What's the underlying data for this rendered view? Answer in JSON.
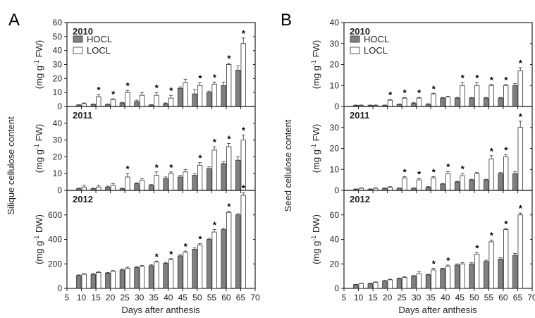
{
  "figure": {
    "panels": [
      {
        "letter": "A",
        "ylabel": "Silique cellulose content"
      },
      {
        "letter": "B",
        "ylabel": "Seed cellulose content"
      }
    ],
    "xlabel": "Days after anthesis",
    "legend": [
      "HOCL",
      "LOCL"
    ]
  },
  "colors": {
    "hocl": "#808080",
    "locl": "#ffffff",
    "stroke": "#333333"
  },
  "chart_data": [
    {
      "type": "bar",
      "panel": "A",
      "year": "2010",
      "unit": "(mg g-1 FW)",
      "x": [
        10,
        15,
        20,
        25,
        30,
        35,
        40,
        45,
        50,
        55,
        60,
        65
      ],
      "xlim": [
        5,
        70
      ],
      "xticks": [
        5,
        10,
        15,
        20,
        25,
        30,
        35,
        40,
        45,
        50,
        55,
        60,
        65,
        70
      ],
      "ylim": [
        0,
        60
      ],
      "yticks": [
        0,
        10,
        20,
        30,
        40,
        50,
        60
      ],
      "show_legend": true,
      "series": [
        {
          "name": "HOCL",
          "values": [
            1,
            1.5,
            1.5,
            2.5,
            3.5,
            1,
            2,
            13,
            9,
            10,
            15,
            26
          ],
          "errors": [
            0.3,
            0.3,
            0.3,
            0.5,
            1,
            0.3,
            0.5,
            1,
            3,
            1,
            2.5,
            3
          ]
        },
        {
          "name": "LOCL",
          "values": [
            2,
            7,
            5,
            10,
            8,
            8,
            6,
            17,
            15,
            16,
            30,
            45
          ],
          "errors": [
            0.5,
            1.5,
            0.5,
            1.5,
            2,
            2,
            2,
            2.5,
            2,
            1.5,
            1,
            4
          ]
        }
      ],
      "sig": [
        false,
        true,
        true,
        true,
        false,
        true,
        true,
        false,
        true,
        true,
        true,
        true
      ]
    },
    {
      "type": "bar",
      "panel": "A",
      "year": "2011",
      "unit": "(mg g-1 FW)",
      "x": [
        10,
        15,
        20,
        25,
        30,
        35,
        40,
        45,
        50,
        55,
        60,
        65
      ],
      "xlim": [
        5,
        70
      ],
      "xticks": [
        5,
        10,
        15,
        20,
        25,
        30,
        35,
        40,
        45,
        50,
        55,
        60,
        65,
        70
      ],
      "ylim": [
        0,
        50
      ],
      "yticks": [
        0,
        10,
        20,
        30,
        40,
        50
      ],
      "show_legend": false,
      "series": [
        {
          "name": "HOCL",
          "values": [
            1,
            1,
            2,
            1,
            4,
            3,
            7,
            8,
            9,
            13,
            16,
            18
          ],
          "errors": [
            0.3,
            0.3,
            0.5,
            0.3,
            0.5,
            0.5,
            1,
            1,
            1,
            1,
            1,
            2
          ]
        },
        {
          "name": "LOCL",
          "values": [
            2,
            2,
            3,
            8,
            6,
            9,
            10,
            11,
            15,
            24,
            26,
            30
          ],
          "errors": [
            1,
            1,
            1,
            2,
            1,
            2,
            1,
            1.5,
            1.5,
            2,
            2,
            3
          ]
        }
      ],
      "sig": [
        false,
        false,
        false,
        true,
        false,
        true,
        true,
        false,
        true,
        true,
        true,
        true
      ]
    },
    {
      "type": "bar",
      "panel": "A",
      "year": "2012",
      "unit": "(mg g-1 DW)",
      "x": [
        10,
        15,
        20,
        25,
        30,
        35,
        40,
        45,
        50,
        55,
        60,
        65
      ],
      "xlim": [
        5,
        70
      ],
      "xticks": [
        5,
        10,
        15,
        20,
        25,
        30,
        35,
        40,
        45,
        50,
        55,
        60,
        65,
        70
      ],
      "ylim": [
        0,
        800
      ],
      "yticks": [
        0,
        200,
        400,
        600,
        800
      ],
      "show_legend": false,
      "series": [
        {
          "name": "HOCL",
          "values": [
            105,
            115,
            125,
            150,
            170,
            185,
            205,
            265,
            320,
            400,
            480,
            600
          ],
          "errors": [
            5,
            5,
            5,
            8,
            8,
            8,
            8,
            10,
            10,
            10,
            10,
            10
          ]
        },
        {
          "name": "LOCL",
          "values": [
            115,
            130,
            140,
            165,
            180,
            215,
            235,
            295,
            355,
            460,
            620,
            760
          ],
          "errors": [
            5,
            5,
            5,
            8,
            8,
            8,
            8,
            10,
            10,
            20,
            10,
            20
          ]
        }
      ],
      "sig": [
        false,
        false,
        false,
        false,
        false,
        true,
        true,
        true,
        true,
        true,
        true,
        true
      ]
    },
    {
      "type": "bar",
      "panel": "B",
      "year": "2010",
      "unit": "(mg g-1 FW)",
      "x": [
        10,
        15,
        20,
        25,
        30,
        35,
        40,
        45,
        50,
        55,
        60,
        65
      ],
      "xlim": [
        5,
        70
      ],
      "xticks": [
        5,
        10,
        15,
        20,
        25,
        30,
        35,
        40,
        45,
        50,
        55,
        60,
        65,
        70
      ],
      "ylim": [
        0,
        40
      ],
      "yticks": [
        0,
        10,
        20,
        30,
        40
      ],
      "show_legend": true,
      "series": [
        {
          "name": "HOCL",
          "values": [
            0.5,
            0.5,
            0.5,
            1,
            1.5,
            1,
            4,
            4,
            4,
            4,
            4,
            10
          ],
          "errors": [
            0.2,
            0.2,
            0.2,
            0.2,
            0.3,
            0.3,
            0.3,
            0.3,
            0.3,
            0.3,
            0.3,
            1
          ]
        },
        {
          "name": "LOCL",
          "values": [
            0.5,
            0.5,
            3,
            4,
            4,
            6,
            4.5,
            10,
            10,
            10,
            10,
            17
          ],
          "errors": [
            0.2,
            0.2,
            0.3,
            0.3,
            0.3,
            0.3,
            0.3,
            1.5,
            1.5,
            0.5,
            0.5,
            1.5
          ]
        }
      ],
      "sig": [
        false,
        false,
        true,
        true,
        true,
        true,
        false,
        true,
        true,
        true,
        true,
        true
      ]
    },
    {
      "type": "bar",
      "panel": "B",
      "year": "2011",
      "unit": "(mg g-1 FW)",
      "x": [
        10,
        15,
        20,
        25,
        30,
        35,
        40,
        45,
        50,
        55,
        60,
        65
      ],
      "xlim": [
        5,
        70
      ],
      "xticks": [
        5,
        10,
        15,
        20,
        25,
        30,
        35,
        40,
        45,
        50,
        55,
        60,
        65,
        70
      ],
      "ylim": [
        0,
        40
      ],
      "yticks": [
        0,
        10,
        20,
        30,
        40
      ],
      "show_legend": false,
      "series": [
        {
          "name": "HOCL",
          "values": [
            0.5,
            0.5,
            1,
            1,
            1,
            1.5,
            3,
            4,
            5,
            5,
            8,
            8
          ],
          "errors": [
            0.2,
            0.2,
            0.2,
            0.2,
            0.2,
            0.3,
            0.3,
            0.3,
            0.3,
            0.3,
            0.5,
            1
          ]
        },
        {
          "name": "LOCL",
          "values": [
            1,
            1,
            1.5,
            6,
            5,
            6,
            8,
            7,
            8,
            15,
            16,
            30
          ],
          "errors": [
            0.2,
            0.2,
            0.3,
            0.5,
            0.5,
            0.5,
            1,
            1,
            0.5,
            1.5,
            1,
            3
          ]
        }
      ],
      "sig": [
        false,
        false,
        false,
        true,
        true,
        true,
        true,
        true,
        false,
        true,
        true,
        true
      ]
    },
    {
      "type": "bar",
      "panel": "B",
      "year": "2012",
      "unit": "(mg g-1 DW)",
      "x": [
        10,
        15,
        20,
        25,
        30,
        35,
        40,
        45,
        50,
        55,
        60,
        65
      ],
      "xlim": [
        5,
        70
      ],
      "xticks": [
        5,
        10,
        15,
        20,
        25,
        30,
        35,
        40,
        45,
        50,
        55,
        60,
        65,
        70
      ],
      "ylim": [
        0,
        80
      ],
      "yticks": [
        0,
        20,
        40,
        60,
        80
      ],
      "show_legend": false,
      "series": [
        {
          "name": "HOCL",
          "values": [
            3,
            4,
            6,
            8,
            10,
            11,
            16,
            19,
            20,
            22,
            24,
            27
          ],
          "errors": [
            0.3,
            0.3,
            0.5,
            0.5,
            0.5,
            0.5,
            0.5,
            1,
            1,
            1,
            1,
            1.5
          ]
        },
        {
          "name": "LOCL",
          "values": [
            4,
            5,
            7,
            9,
            12,
            15,
            18,
            20,
            28,
            38,
            48,
            60
          ],
          "errors": [
            0.3,
            0.3,
            0.5,
            0.5,
            1.5,
            1.5,
            1,
            1,
            1,
            1.5,
            1,
            1.5
          ]
        }
      ],
      "sig": [
        false,
        false,
        false,
        false,
        false,
        true,
        true,
        false,
        true,
        true,
        true,
        true
      ]
    }
  ]
}
